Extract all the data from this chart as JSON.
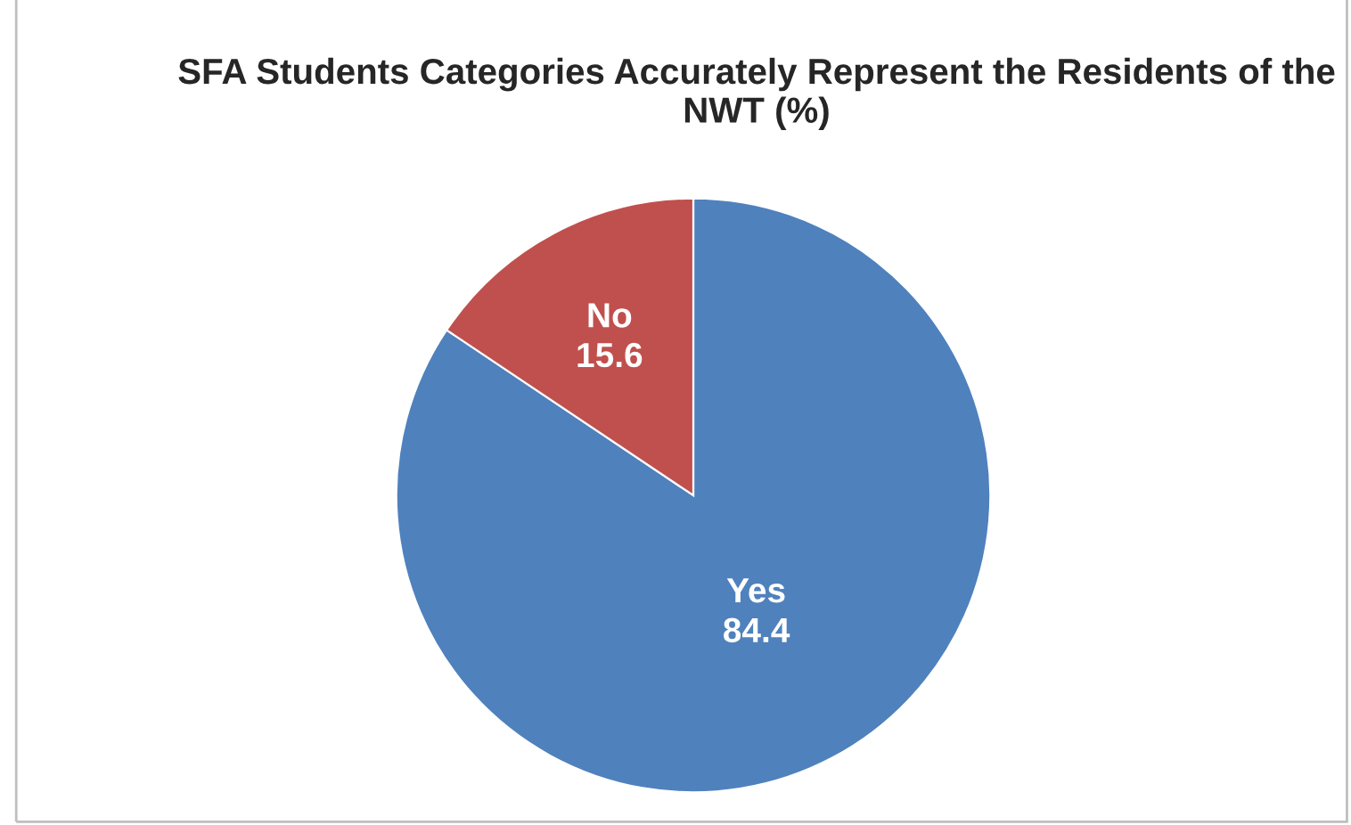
{
  "chart_data": {
    "type": "pie",
    "title": "SFA Students Categories Accurately Represent the Residents of the NWT (%)",
    "categories": [
      "Yes",
      "No"
    ],
    "values": [
      84.4,
      15.6
    ],
    "colors": [
      "#4f81bd",
      "#c0504d"
    ],
    "data_labels": true
  }
}
